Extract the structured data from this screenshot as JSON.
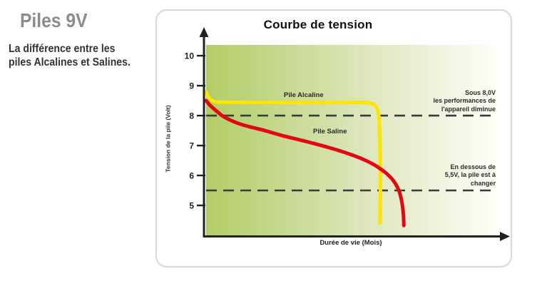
{
  "page": {
    "heading": "Piles 9V",
    "subheading": "La différence entre les\npiles Alcalines et Salines."
  },
  "colors": {
    "heading_gray": "#8C8C8C",
    "text_dark": "#343434",
    "panel_border": "#D9D9D9",
    "axis": "#222222",
    "dashed_line": "#3B3B3B",
    "plot_green_start": "#B1CD65",
    "plot_green_mid": "#DDE6BD",
    "plot_green_end": "#FDFEF6"
  },
  "chart_data": {
    "type": "line",
    "title": "Courbe de tension",
    "xlabel": "Durée de vie  (Mois)",
    "ylabel": "Tension de la pile  (Volt)",
    "xlim": [
      0,
      10
    ],
    "ylim": [
      4.0,
      10.36
    ],
    "yticks": [
      10,
      9,
      8,
      7,
      6,
      5
    ],
    "xticks": [],
    "grid": false,
    "legend_position": "inline-labels",
    "plot_bg_gradient": [
      "#B1CD65",
      "#DDE6BD",
      "#FDFEF6"
    ],
    "thresholds": [
      {
        "value": 8.0,
        "note": "Sous 8,0V\nles performances de\nl'appareil diminue"
      },
      {
        "value": 5.5,
        "note": "En dessous de\n5,5V, la pile est à\nchanger"
      }
    ],
    "series": [
      {
        "name": "Pile Alcaline",
        "color": "#FFE400",
        "points": [
          [
            0,
            8.78
          ],
          [
            0.07,
            8.64
          ],
          [
            0.15,
            8.54
          ],
          [
            0.3,
            8.47
          ],
          [
            0.5,
            8.45
          ],
          [
            1.5,
            8.44
          ],
          [
            3,
            8.44
          ],
          [
            4.5,
            8.44
          ],
          [
            5.3,
            8.44
          ],
          [
            5.6,
            8.43
          ],
          [
            5.78,
            8.38
          ],
          [
            5.9,
            8.25
          ],
          [
            5.97,
            7.95
          ],
          [
            6.0,
            7.3
          ],
          [
            6.02,
            6.3
          ],
          [
            6.02,
            5.3
          ],
          [
            6.01,
            4.42
          ]
        ]
      },
      {
        "name": "Pile Saline",
        "color": "#E30613",
        "points": [
          [
            0,
            8.5
          ],
          [
            0.12,
            8.36
          ],
          [
            0.25,
            8.24
          ],
          [
            0.4,
            8.12
          ],
          [
            0.55,
            8.0
          ],
          [
            0.75,
            7.89
          ],
          [
            1.0,
            7.78
          ],
          [
            1.3,
            7.68
          ],
          [
            1.7,
            7.58
          ],
          [
            2.1,
            7.48
          ],
          [
            2.6,
            7.34
          ],
          [
            3.1,
            7.22
          ],
          [
            3.6,
            7.1
          ],
          [
            4.1,
            6.97
          ],
          [
            4.6,
            6.83
          ],
          [
            5.0,
            6.7
          ],
          [
            5.4,
            6.55
          ],
          [
            5.8,
            6.36
          ],
          [
            6.05,
            6.2
          ],
          [
            6.25,
            6.05
          ],
          [
            6.45,
            5.85
          ],
          [
            6.6,
            5.62
          ],
          [
            6.7,
            5.38
          ],
          [
            6.78,
            5.0
          ],
          [
            6.82,
            4.6
          ],
          [
            6.83,
            4.33
          ]
        ]
      }
    ]
  }
}
